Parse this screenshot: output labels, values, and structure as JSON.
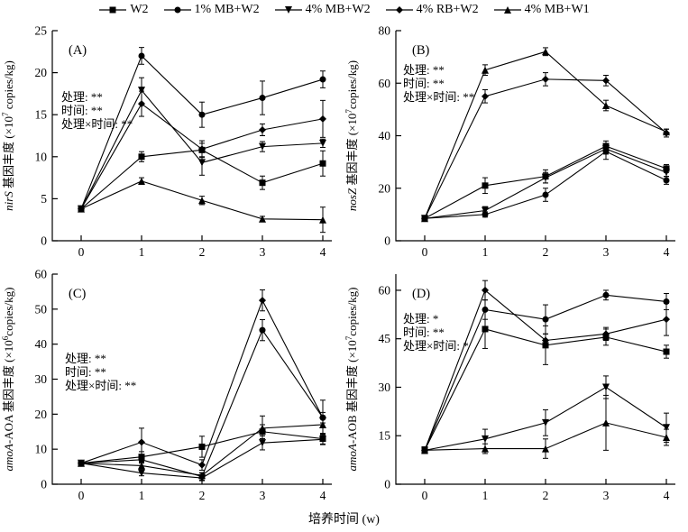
{
  "xlabel": "培养时间 (w)",
  "colors": {
    "line": "#000000",
    "background": "#ffffff"
  },
  "legend": {
    "position": "top-center",
    "items": [
      {
        "label": "W2",
        "marker": "square"
      },
      {
        "label": "1% MB+W2",
        "marker": "circle"
      },
      {
        "label": "4% MB+W2",
        "marker": "triangle-down"
      },
      {
        "label": "4% RB+W2",
        "marker": "diamond"
      },
      {
        "label": "4% MB+W1",
        "marker": "triangle-up"
      }
    ]
  },
  "chart_data": [
    {
      "type": "line",
      "panel_label": "(A)",
      "ylabel": {
        "italic": "nirS",
        "text": " 基因丰度 (×10",
        "sup": "7",
        "tail": " copies/kg)"
      },
      "annotations": [
        "处理: **",
        "时间: **",
        "处理×时间: **"
      ],
      "x": [
        0,
        1,
        2,
        3,
        4
      ],
      "xticks": [
        0,
        1,
        2,
        3,
        4
      ],
      "yticks": [
        0,
        5,
        10,
        15,
        20,
        25
      ],
      "ylim": [
        0,
        25
      ],
      "grid": false,
      "series": [
        {
          "name": "W2",
          "marker": "square",
          "values": [
            3.8,
            10.0,
            10.8,
            6.9,
            9.2
          ],
          "errors": [
            0.3,
            0.6,
            0.8,
            0.8,
            1.5
          ]
        },
        {
          "name": "1% MB+W2",
          "marker": "circle",
          "values": [
            3.8,
            22.0,
            15.0,
            17.0,
            19.2
          ],
          "errors": [
            0.3,
            1.0,
            1.5,
            2.0,
            1.0
          ]
        },
        {
          "name": "4% MB+W2",
          "marker": "triangle-down",
          "values": [
            3.8,
            17.9,
            9.3,
            11.2,
            11.6
          ],
          "errors": [
            0.3,
            1.5,
            1.5,
            0.6,
            0.5
          ]
        },
        {
          "name": "4% RB+W2",
          "marker": "diamond",
          "values": [
            3.8,
            16.3,
            10.9,
            13.2,
            14.5
          ],
          "errors": [
            0.3,
            1.5,
            1.0,
            0.7,
            2.2
          ]
        },
        {
          "name": "4% MB+W1",
          "marker": "triangle-up",
          "values": [
            3.8,
            7.1,
            4.8,
            2.6,
            2.5
          ],
          "errors": [
            0.3,
            0.4,
            0.5,
            0.3,
            1.5
          ]
        }
      ]
    },
    {
      "type": "line",
      "panel_label": "(B)",
      "ylabel": {
        "italic": "nosZ",
        "text": " 基因丰度 (×10",
        "sup": "7",
        "tail": "copies/kg)"
      },
      "annotations": [
        "处理: **",
        "时间: **",
        "处理×时间: **"
      ],
      "x": [
        0,
        1,
        2,
        3,
        4
      ],
      "xticks": [
        0,
        1,
        2,
        3,
        4
      ],
      "yticks": [
        0,
        20,
        40,
        60,
        80
      ],
      "ylim": [
        0,
        80
      ],
      "grid": false,
      "series": [
        {
          "name": "W2",
          "marker": "square",
          "values": [
            8.5,
            21.0,
            24.5,
            36.0,
            27.5
          ],
          "errors": [
            1.0,
            3.0,
            2.5,
            2.0,
            1.5
          ]
        },
        {
          "name": "1% MB+W2",
          "marker": "circle",
          "values": [
            8.5,
            10.0,
            17.5,
            34.0,
            23.0
          ],
          "errors": [
            1.0,
            1.0,
            2.5,
            3.0,
            1.5
          ]
        },
        {
          "name": "4% MB+W2",
          "marker": "triangle-down",
          "values": [
            8.5,
            11.5,
            24.0,
            35.0,
            26.0
          ],
          "errors": [
            1.0,
            1.5,
            2.0,
            2.0,
            1.5
          ]
        },
        {
          "name": "4% RB+W2",
          "marker": "diamond",
          "values": [
            8.5,
            55.0,
            61.5,
            61.0,
            41.0
          ],
          "errors": [
            1.0,
            2.5,
            2.5,
            2.0,
            1.5
          ]
        },
        {
          "name": "4% MB+W1",
          "marker": "triangle-up",
          "values": [
            8.5,
            65.0,
            72.0,
            51.5,
            41.5
          ],
          "errors": [
            1.0,
            2.0,
            1.5,
            2.0,
            1.0
          ]
        }
      ]
    },
    {
      "type": "line",
      "panel_label": "(C)",
      "ylabel": {
        "italic": "amoA",
        "text": "-AOA 基因丰度 (×10",
        "sup": "6",
        "tail": "copies/kg)"
      },
      "annotations": [
        "处理: **",
        "时间: **",
        "处理×时间: **"
      ],
      "x": [
        0,
        1,
        2,
        3,
        4
      ],
      "xticks": [
        0,
        1,
        2,
        3,
        4
      ],
      "yticks": [
        0,
        10,
        20,
        30,
        40,
        50,
        60
      ],
      "ylim": [
        0,
        60
      ],
      "grid": false,
      "series": [
        {
          "name": "W2",
          "marker": "square",
          "values": [
            6.0,
            7.8,
            10.7,
            15.0,
            13.0
          ],
          "errors": [
            0.5,
            1.5,
            3.0,
            2.0,
            1.5
          ]
        },
        {
          "name": "1% MB+W2",
          "marker": "circle",
          "values": [
            6.0,
            7.0,
            2.2,
            44.0,
            19.0
          ],
          "errors": [
            0.5,
            1.0,
            1.0,
            3.0,
            1.5
          ]
        },
        {
          "name": "4% MB+W2",
          "marker": "triangle-down",
          "values": [
            6.0,
            3.2,
            1.8,
            11.8,
            12.8
          ],
          "errors": [
            0.5,
            0.8,
            0.8,
            2.0,
            1.5
          ]
        },
        {
          "name": "4% RB+W2",
          "marker": "diamond",
          "values": [
            6.0,
            12.0,
            5.5,
            52.5,
            19.0
          ],
          "errors": [
            0.5,
            4.0,
            1.5,
            3.0,
            5.0
          ]
        },
        {
          "name": "4% MB+W1",
          "marker": "triangle-up",
          "values": [
            6.0,
            5.3,
            2.5,
            16.0,
            17.0
          ],
          "errors": [
            0.5,
            1.0,
            0.8,
            3.5,
            2.5
          ]
        }
      ]
    },
    {
      "type": "line",
      "panel_label": "(D)",
      "ylabel": {
        "italic": "amoA",
        "text": "-AOB 基因丰度 (×10",
        "sup": "7",
        "tail": "copies/kg)"
      },
      "annotations": [
        "处理: *",
        "时间: **",
        "处理×时间: *"
      ],
      "x": [
        0,
        1,
        2,
        3,
        4
      ],
      "xticks": [
        0,
        1,
        2,
        3,
        4
      ],
      "yticks": [
        0,
        15,
        30,
        45,
        60
      ],
      "ylim": [
        0,
        65
      ],
      "grid": false,
      "series": [
        {
          "name": "W2",
          "marker": "square",
          "values": [
            10.5,
            48.0,
            43.0,
            45.5,
            41.0
          ],
          "errors": [
            1.0,
            6.0,
            6.0,
            2.5,
            2.0
          ]
        },
        {
          "name": "1% MB+W2",
          "marker": "circle",
          "values": [
            10.5,
            54.0,
            51.0,
            58.5,
            56.5
          ],
          "errors": [
            1.0,
            3.0,
            4.5,
            1.5,
            2.5
          ]
        },
        {
          "name": "4% MB+W2",
          "marker": "triangle-down",
          "values": [
            10.5,
            14.0,
            19.0,
            30.0,
            17.5
          ],
          "errors": [
            1.0,
            3.0,
            4.0,
            3.5,
            4.5
          ]
        },
        {
          "name": "4% RB+W2",
          "marker": "diamond",
          "values": [
            10.5,
            60.0,
            44.5,
            46.5,
            51.0
          ],
          "errors": [
            1.0,
            3.0,
            2.0,
            2.0,
            5.0
          ]
        },
        {
          "name": "4% MB+W1",
          "marker": "triangle-up",
          "values": [
            10.5,
            11.0,
            11.0,
            19.0,
            14.5
          ],
          "errors": [
            1.0,
            1.5,
            3.0,
            8.5,
            2.5
          ]
        }
      ]
    }
  ]
}
